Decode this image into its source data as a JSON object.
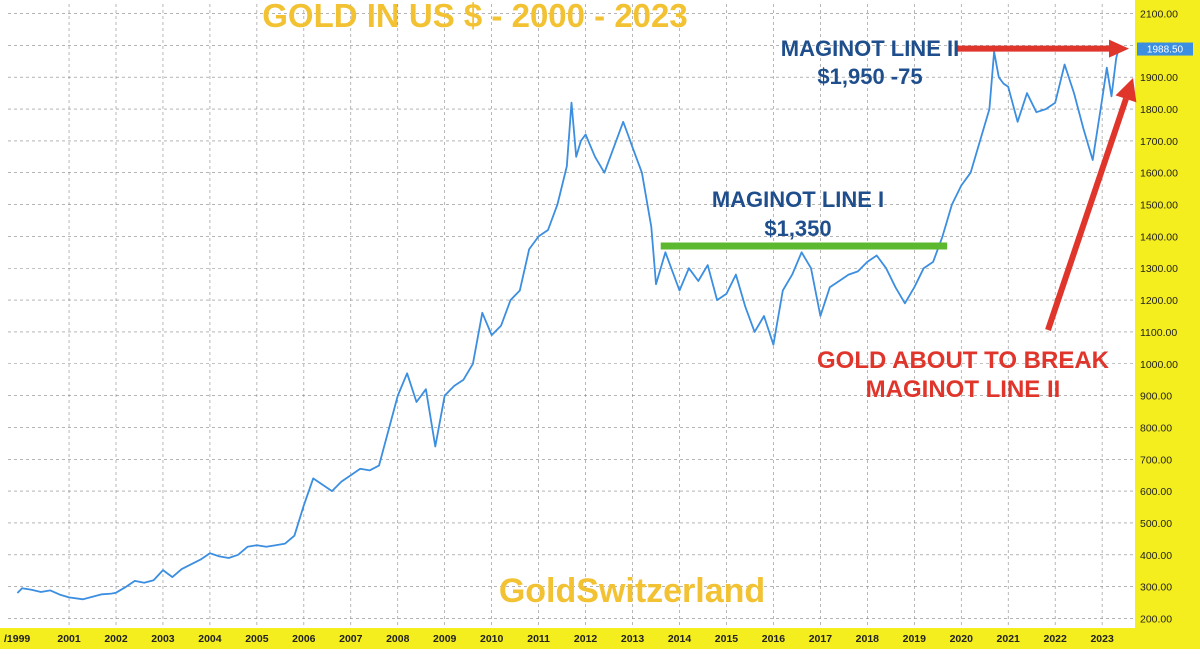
{
  "chart_data": {
    "type": "line",
    "title": "GOLD IN US $ - 2000 - 2023",
    "watermark": "GoldSwitzerland",
    "series": [
      {
        "values": [
          [
            1999.9,
            280
          ],
          [
            2000.0,
            295
          ],
          [
            2000.2,
            290
          ],
          [
            2000.4,
            283
          ],
          [
            2000.6,
            288
          ],
          [
            2000.8,
            275
          ],
          [
            2001.0,
            266
          ],
          [
            2001.3,
            260
          ],
          [
            2001.5,
            268
          ],
          [
            2001.7,
            276
          ],
          [
            2001.9,
            278
          ],
          [
            2002.0,
            281
          ],
          [
            2002.2,
            298
          ],
          [
            2002.4,
            318
          ],
          [
            2002.6,
            312
          ],
          [
            2002.8,
            320
          ],
          [
            2003.0,
            352
          ],
          [
            2003.2,
            330
          ],
          [
            2003.4,
            355
          ],
          [
            2003.6,
            370
          ],
          [
            2003.8,
            385
          ],
          [
            2004.0,
            405
          ],
          [
            2004.2,
            395
          ],
          [
            2004.4,
            390
          ],
          [
            2004.6,
            400
          ],
          [
            2004.8,
            425
          ],
          [
            2005.0,
            430
          ],
          [
            2005.2,
            425
          ],
          [
            2005.4,
            430
          ],
          [
            2005.6,
            435
          ],
          [
            2005.8,
            460
          ],
          [
            2006.0,
            555
          ],
          [
            2006.2,
            640
          ],
          [
            2006.4,
            620
          ],
          [
            2006.6,
            600
          ],
          [
            2006.8,
            630
          ],
          [
            2007.0,
            650
          ],
          [
            2007.2,
            670
          ],
          [
            2007.4,
            665
          ],
          [
            2007.6,
            680
          ],
          [
            2007.8,
            790
          ],
          [
            2008.0,
            900
          ],
          [
            2008.2,
            970
          ],
          [
            2008.4,
            880
          ],
          [
            2008.6,
            920
          ],
          [
            2008.8,
            740
          ],
          [
            2009.0,
            900
          ],
          [
            2009.2,
            930
          ],
          [
            2009.4,
            950
          ],
          [
            2009.6,
            1000
          ],
          [
            2009.8,
            1160
          ],
          [
            2010.0,
            1090
          ],
          [
            2010.2,
            1120
          ],
          [
            2010.4,
            1200
          ],
          [
            2010.6,
            1230
          ],
          [
            2010.8,
            1360
          ],
          [
            2011.0,
            1400
          ],
          [
            2011.2,
            1420
          ],
          [
            2011.4,
            1500
          ],
          [
            2011.6,
            1620
          ],
          [
            2011.7,
            1820
          ],
          [
            2011.8,
            1650
          ],
          [
            2011.9,
            1700
          ],
          [
            2012.0,
            1720
          ],
          [
            2012.2,
            1650
          ],
          [
            2012.4,
            1600
          ],
          [
            2012.6,
            1680
          ],
          [
            2012.8,
            1760
          ],
          [
            2012.9,
            1720
          ],
          [
            2013.0,
            1680
          ],
          [
            2013.2,
            1600
          ],
          [
            2013.4,
            1430
          ],
          [
            2013.5,
            1250
          ],
          [
            2013.7,
            1350
          ],
          [
            2013.8,
            1310
          ],
          [
            2014.0,
            1230
          ],
          [
            2014.2,
            1300
          ],
          [
            2014.4,
            1260
          ],
          [
            2014.6,
            1310
          ],
          [
            2014.8,
            1200
          ],
          [
            2015.0,
            1220
          ],
          [
            2015.2,
            1280
          ],
          [
            2015.4,
            1180
          ],
          [
            2015.6,
            1100
          ],
          [
            2015.8,
            1150
          ],
          [
            2016.0,
            1060
          ],
          [
            2016.2,
            1230
          ],
          [
            2016.4,
            1280
          ],
          [
            2016.6,
            1350
          ],
          [
            2016.8,
            1300
          ],
          [
            2017.0,
            1150
          ],
          [
            2017.2,
            1240
          ],
          [
            2017.4,
            1260
          ],
          [
            2017.6,
            1280
          ],
          [
            2017.8,
            1290
          ],
          [
            2018.0,
            1320
          ],
          [
            2018.2,
            1340
          ],
          [
            2018.4,
            1300
          ],
          [
            2018.6,
            1240
          ],
          [
            2018.8,
            1190
          ],
          [
            2019.0,
            1240
          ],
          [
            2019.2,
            1300
          ],
          [
            2019.4,
            1320
          ],
          [
            2019.6,
            1400
          ],
          [
            2019.8,
            1500
          ],
          [
            2020.0,
            1560
          ],
          [
            2020.2,
            1600
          ],
          [
            2020.4,
            1700
          ],
          [
            2020.6,
            1800
          ],
          [
            2020.7,
            1980
          ],
          [
            2020.8,
            1900
          ],
          [
            2020.9,
            1880
          ],
          [
            2021.0,
            1870
          ],
          [
            2021.2,
            1760
          ],
          [
            2021.4,
            1850
          ],
          [
            2021.6,
            1790
          ],
          [
            2021.8,
            1800
          ],
          [
            2022.0,
            1820
          ],
          [
            2022.2,
            1940
          ],
          [
            2022.4,
            1850
          ],
          [
            2022.6,
            1740
          ],
          [
            2022.8,
            1640
          ],
          [
            2023.0,
            1830
          ],
          [
            2023.1,
            1930
          ],
          [
            2023.2,
            1840
          ],
          [
            2023.3,
            1960
          ],
          [
            2023.35,
            1988.5
          ]
        ]
      }
    ],
    "xlim": [
      1999.7,
      2023.7
    ],
    "ylim": [
      170,
      2130
    ],
    "x_tick_labels": [
      "/1999",
      "2001",
      "2002",
      "2003",
      "2004",
      "2005",
      "2006",
      "2007",
      "2008",
      "2009",
      "2010",
      "2011",
      "2012",
      "2013",
      "2014",
      "2015",
      "2016",
      "2017",
      "2018",
      "2019",
      "2020",
      "2021",
      "2022",
      "2023"
    ],
    "x_tick_years": [
      1999.7,
      2001,
      2002,
      2003,
      2004,
      2005,
      2006,
      2007,
      2008,
      2009,
      2010,
      2011,
      2012,
      2013,
      2014,
      2015,
      2016,
      2017,
      2018,
      2019,
      2020,
      2021,
      2022,
      2023
    ],
    "y_ticks": [
      200,
      300,
      400,
      500,
      600,
      700,
      800,
      900,
      1000,
      1100,
      1200,
      1300,
      1400,
      1500,
      1600,
      1700,
      1800,
      1900,
      2000,
      2100
    ],
    "y_tick_labels": [
      "200.00",
      "300.00",
      "400.00",
      "500.00",
      "600.00",
      "700.00",
      "800.00",
      "900.00",
      "1000.00",
      "1100.00",
      "1200.00",
      "1300.00",
      "1400.00",
      "1500.00",
      "1600.00",
      "1700.00",
      "1800.00",
      "1900.00",
      "2000.00",
      "2100.00"
    ],
    "last_price_label": "1988.50",
    "last_price": 1988.5,
    "grid": true,
    "annotations": {
      "line1_title": "MAGINOT LINE I",
      "line1_value": "$1,350",
      "line1_level": 1370,
      "line1_range": [
        2013.6,
        2019.7
      ],
      "line2_title": "MAGINOT LINE II",
      "line2_value": "$1,950 -75",
      "line2_level": 1990,
      "line2_range": [
        2019.5,
        2023.7
      ],
      "break_text_1": "GOLD ABOUT TO BREAK",
      "break_text_2": "MAGINOT LINE II"
    },
    "colors": {
      "price_line": "#3b8ee0",
      "axis_band": "#f5ee1f",
      "grid": "#888888",
      "title": "#f2c233",
      "annotation_blue": "#1f4e8c",
      "annotation_red": "#e0352b",
      "support_line": "#5cb82f",
      "resistance_line": "#e0352b",
      "price_tag": "#3b8ee0"
    }
  }
}
